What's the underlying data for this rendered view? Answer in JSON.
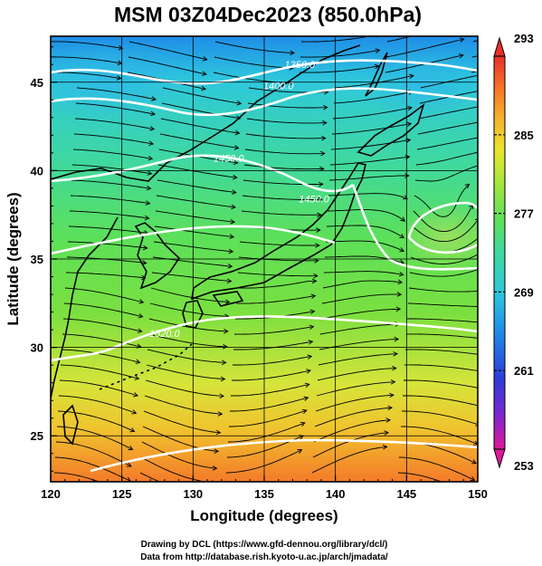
{
  "title": "MSM 03Z04Dec2023 (850.0hPa)",
  "chart_data": {
    "type": "heatmap",
    "title": "MSM 03Z04Dec2023 (850.0hPa)",
    "xlabel": "Longitude (degrees)",
    "ylabel": "Latitude  (degrees)",
    "xlim": [
      120,
      150
    ],
    "ylim": [
      22.4,
      47.6
    ],
    "x_ticks": [
      "120",
      "125",
      "130",
      "135",
      "140",
      "145",
      "150"
    ],
    "y_ticks": [
      "25",
      "30",
      "35",
      "40",
      "45"
    ],
    "x_tick_values": [
      120,
      125,
      130,
      135,
      140,
      145,
      150
    ],
    "y_tick_values": [
      25,
      30,
      35,
      40,
      45
    ],
    "grid": true,
    "colorbar": {
      "min": 253,
      "max": 293,
      "tick_labels": [
        "293",
        "285",
        "277",
        "269",
        "261",
        "253"
      ],
      "tick_values": [
        293,
        285,
        277,
        269,
        261,
        253
      ],
      "colors": [
        "#e0189a",
        "#7a28d0",
        "#2d3cd8",
        "#1f8de8",
        "#2ec8dc",
        "#3fd8a0",
        "#5ce05a",
        "#a8e63c",
        "#e8e62e",
        "#f6b22c",
        "#f6722a",
        "#e8302a"
      ]
    },
    "contour_labels": [
      {
        "text": "1350.0",
        "lon": 137.5,
        "lat": 45.8
      },
      {
        "text": "1400.0",
        "lon": 136.0,
        "lat": 44.6
      },
      {
        "text": "1450.0",
        "lon": 132.5,
        "lat": 40.5
      },
      {
        "text": "1450.0",
        "lon": 138.5,
        "lat": 38.2
      },
      {
        "text": "1520.0",
        "lon": 128.0,
        "lat": 30.6
      }
    ]
  },
  "credits": [
    "Drawing by DCL (https://www.gfd-dennou.org/library/dcl/)",
    "Data from http://database.rish.kyoto-u.ac.jp/arch/jmadata/"
  ]
}
